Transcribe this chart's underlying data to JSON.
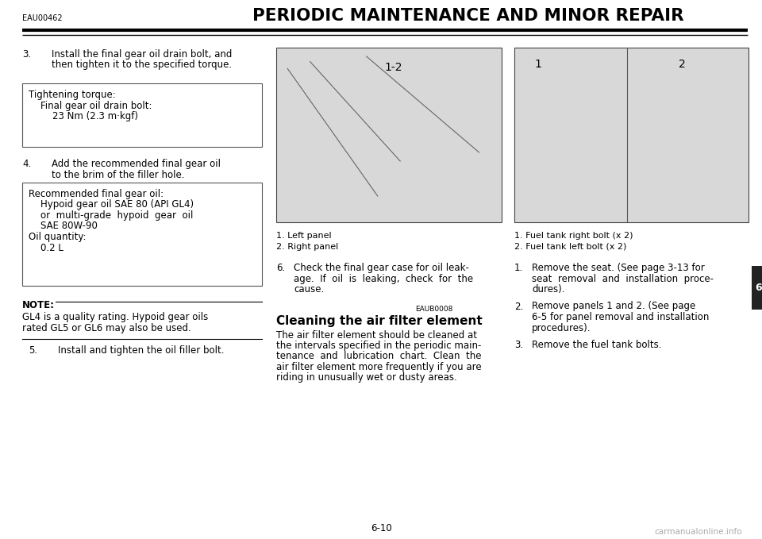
{
  "bg_color": "#ffffff",
  "header_code": "EAU00462",
  "header_title": "PERIODIC MAINTENANCE AND MINOR REPAIR",
  "page_number": "6-10",
  "tab_number": "6",
  "box1_lines": "Tightening torque:\n    Final gear oil drain bolt:\n        23 Nm (2.3 m·kgf)",
  "box2_lines": "Recommended final gear oil:\n    Hypoid gear oil SAE 80 (API GL4)\n    or  multi-grade  hypoid  gear  oil\n    SAE 80W-90\nOil quantity:\n    0.2 L",
  "note_text": "GL4 is a quality rating. Hypoid gear oils\nrated GL5 or GL6 may also be used.",
  "caption_left_1": "1. Left panel",
  "caption_left_2": "2. Right panel",
  "step6_line1": "6.   Check the final gear case for oil leak-",
  "step6_line2": "age.  If  oil  is  leaking,  check  for  the",
  "step6_line3": "cause.",
  "section_code": "EAUB0008",
  "section_title": "Cleaning the air filter element",
  "section_body_1": "The air filter element should be cleaned at",
  "section_body_2": "the intervals specified in the periodic main-",
  "section_body_3": "tenance  and  lubrication  chart.  Clean  the",
  "section_body_4": "air filter element more frequently if you are",
  "section_body_5": "riding in unusually wet or dusty areas.",
  "caption_right_1": "1. Fuel tank right bolt (x 2)",
  "caption_right_2": "2. Fuel tank left bolt (x 2)",
  "step_r1_1": "1.   Remove the seat. (See page 3-13 for",
  "step_r1_2": "seat  removal  and  installation  proce-",
  "step_r1_3": "dures).",
  "step_r2_1": "2.   Remove panels 1 and 2. (See page",
  "step_r2_2": "6-5 for panel removal and installation",
  "step_r2_3": "procedures).",
  "step_r3": "3.   Remove the fuel tank bolts.",
  "watermark": "carmanualonline.info"
}
